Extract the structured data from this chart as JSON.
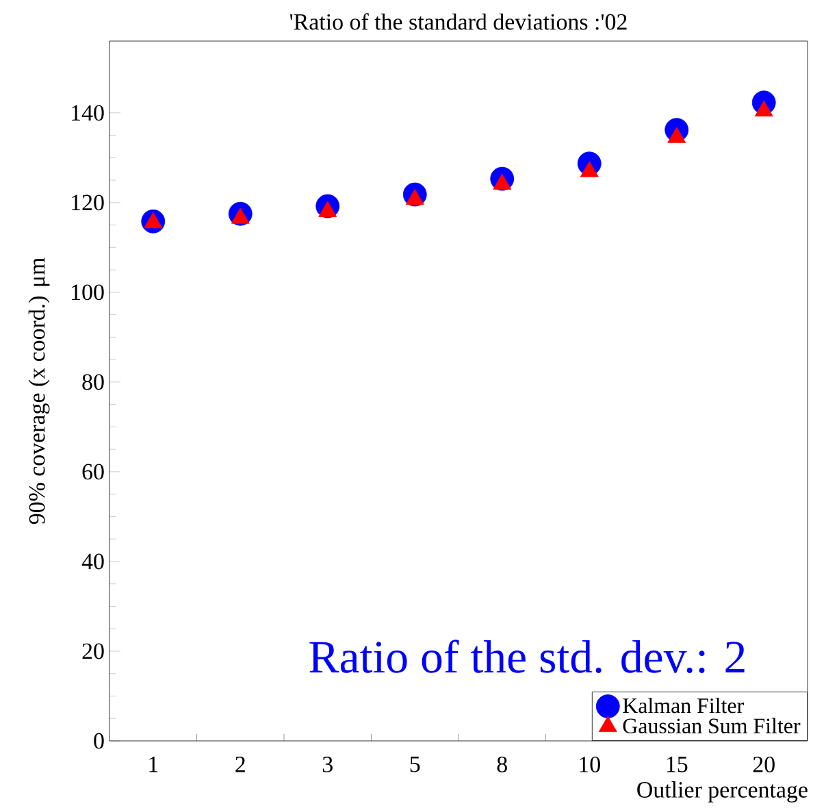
{
  "chart_data": {
    "type": "scatter",
    "title": "'Ratio of the standard deviations :'02",
    "xlabel": "Outlier percentage",
    "ylabel": "90%  coverage (x coord.) μm",
    "categories": [
      "1",
      "2",
      "3",
      "5",
      "8",
      "10",
      "15",
      "20"
    ],
    "series": [
      {
        "name": "Kalman Filter",
        "color": "#0000ff",
        "marker": "circle",
        "values": [
          115.8,
          117.5,
          119.2,
          121.8,
          125.3,
          128.7,
          136.2,
          142.3
        ]
      },
      {
        "name": "Gaussian Sum Filter",
        "color": "#ff0000",
        "marker": "triangle",
        "values": [
          115.5,
          116.5,
          118.0,
          120.7,
          124.1,
          126.9,
          134.5,
          140.4
        ]
      }
    ],
    "ylim": [
      0,
      156
    ],
    "yticks": [
      0,
      20,
      40,
      60,
      80,
      100,
      120,
      140
    ],
    "annotations": [
      "Ratio of the std. dev.: 2"
    ],
    "legend": "bottom right",
    "grid": false
  }
}
